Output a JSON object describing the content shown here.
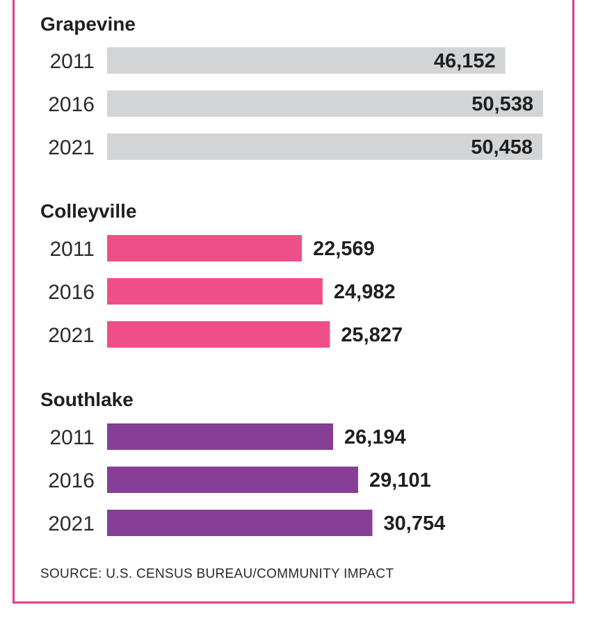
{
  "chart_data": {
    "type": "bar",
    "orientation": "horizontal",
    "groups": [
      {
        "name": "Grapevine",
        "color": "#d3d4d6",
        "value_inside": true,
        "categories": [
          "2011",
          "2016",
          "2021"
        ],
        "values": [
          46152,
          50538,
          50458
        ],
        "labels": [
          "46,152",
          "50,538",
          "50,458"
        ]
      },
      {
        "name": "Colleyville",
        "color": "#ee4f88",
        "value_inside": false,
        "categories": [
          "2011",
          "2016",
          "2021"
        ],
        "values": [
          22569,
          24982,
          25827
        ],
        "labels": [
          "22,569",
          "24,982",
          "25,827"
        ]
      },
      {
        "name": "Southlake",
        "color": "#863e96",
        "value_inside": false,
        "categories": [
          "2011",
          "2016",
          "2021"
        ],
        "values": [
          26194,
          29101,
          30754
        ],
        "labels": [
          "26,194",
          "29,101",
          "30,754"
        ]
      }
    ],
    "xlim": [
      0,
      50538
    ],
    "grid": false,
    "legend": "none"
  },
  "source": "SOURCE: U.S. CENSUS BUREAU/COMMUNITY IMPACT",
  "accent_color": "#e0408a"
}
